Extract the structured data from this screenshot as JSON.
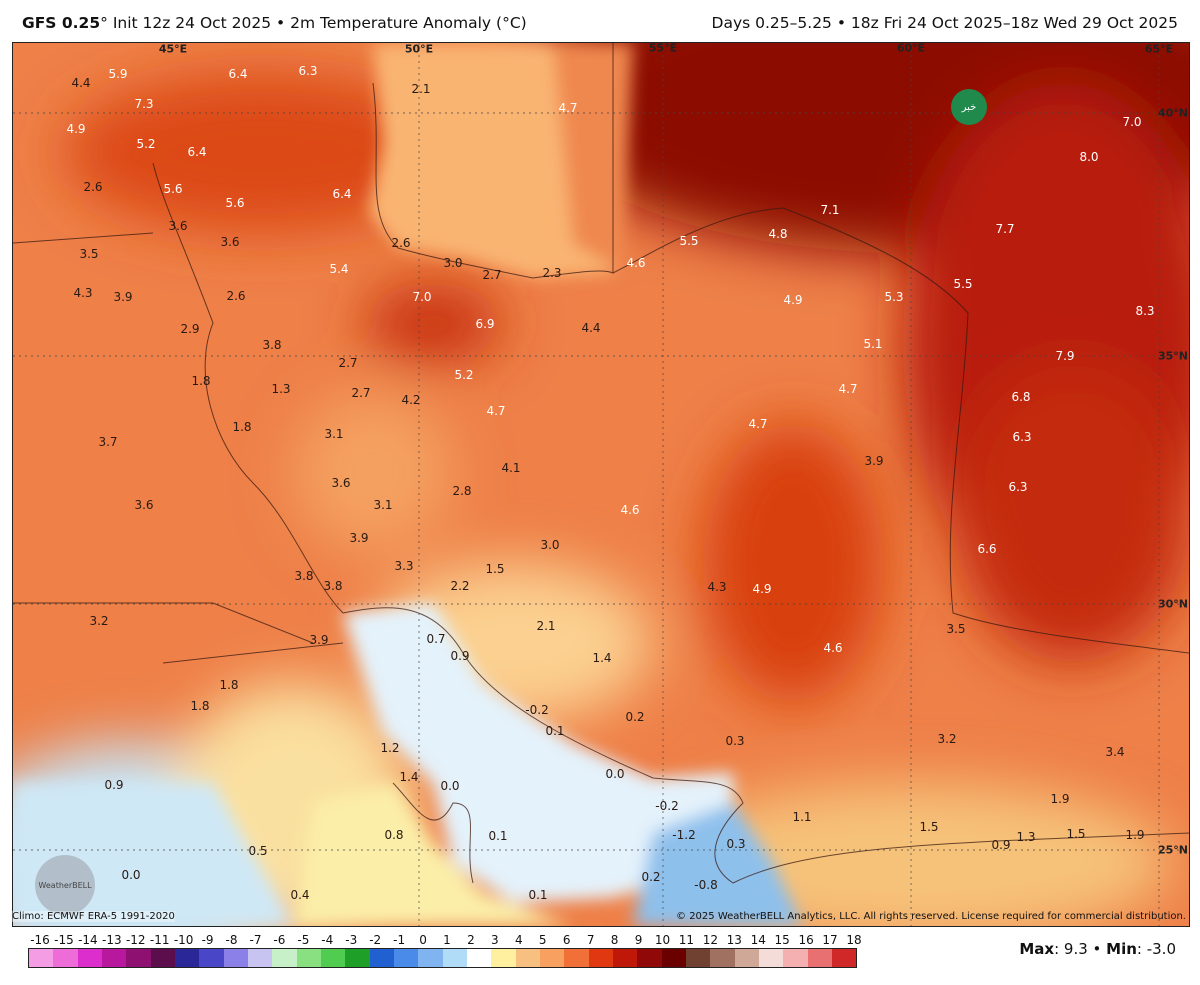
{
  "header": {
    "model": "GFS 0.25",
    "degree": "°",
    "init_info": "Init 12z 24 Oct 2025 • 2m Temperature Anomaly (°C)",
    "period": "Days 0.25–5.25 • 18z Fri 24 Oct 2025–18z Wed 29 Oct 2025"
  },
  "map": {
    "longitude_labels": [
      "45°E",
      "50°E",
      "55°E",
      "60°E",
      "65°E"
    ],
    "latitude_labels": [
      "40°N",
      "35°N",
      "30°N",
      "25°N"
    ],
    "anomaly_labels": [
      "4.4",
      "5.9",
      "6.4",
      "6.3",
      "7.3",
      "4.9",
      "5.2",
      "6.4",
      "2.6",
      "5.6",
      "5.6",
      "6.4",
      "3.6",
      "3.6",
      "2.6",
      "3.5",
      "5.4",
      "3.0",
      "2.7",
      "2.3",
      "4.6",
      "5.5",
      "4.8",
      "7.1",
      "7.7",
      "4.3",
      "3.9",
      "2.6",
      "7.0",
      "6.9",
      "4.4",
      "4.9",
      "5.3",
      "5.5",
      "8.3",
      "2.9",
      "3.8",
      "2.7",
      "5.1",
      "7.9",
      "1.8",
      "1.3",
      "2.7",
      "4.2",
      "5.2",
      "4.7",
      "4.7",
      "4.7",
      "6.8",
      "1.8",
      "3.1",
      "3.7",
      "6.3",
      "4.1",
      "3.9",
      "2.8",
      "3.6",
      "3.1",
      "6.3",
      "3.6",
      "4.6",
      "3.9",
      "3.0",
      "6.6",
      "3.3",
      "1.5",
      "3.8",
      "3.8",
      "2.2",
      "4.3",
      "4.9",
      "3.2",
      "2.1",
      "3.5",
      "0.7",
      "3.9",
      "0.9",
      "1.4",
      "4.6",
      "1.8",
      "1.8",
      "-0.2",
      "0.2",
      "0.1",
      "3.2",
      "0.3",
      "1.2",
      "3.4",
      "0.0",
      "1.4",
      "0.9",
      "0.0",
      "-0.2",
      "1.9",
      "1.1",
      "1.5",
      "1.3",
      "1.5",
      "1.9",
      "-1.2",
      "0.1",
      "0.8",
      "0.3",
      "0.9",
      "0.5",
      "0.0",
      "0.2",
      "-0.8",
      "0.1",
      "0.4",
      "7.0",
      "8.0",
      "4.7",
      "2.1"
    ],
    "watermark_logo": "خبرفوری",
    "weatherbell_logo": "WeatherBELL"
  },
  "footer": {
    "climo": "Climo: ECMWF ERA-5 1991-2020",
    "copyright": "© 2025 WeatherBELL Analytics, LLC. All rights reserved. License required for commercial distribution.",
    "max_label": "Max",
    "max_value": ": 9.3 • ",
    "min_label": "Min",
    "min_value": ": -3.0"
  },
  "colorbar": {
    "ticks": [
      "-16",
      "-15",
      "-14",
      "-13",
      "-12",
      "-11",
      "-10",
      "-9",
      "-8",
      "-7",
      "-6",
      "-5",
      "-4",
      "-3",
      "-2",
      "-1",
      "0",
      "1",
      "2",
      "3",
      "4",
      "5",
      "6",
      "7",
      "8",
      "9",
      "10",
      "11",
      "12",
      "13",
      "14",
      "15",
      "16",
      "17",
      "18"
    ],
    "colors": [
      "#f49ce4",
      "#ee6cd8",
      "#dc2ecc",
      "#b8189e",
      "#8e1070",
      "#5c0e4c",
      "#2a2898",
      "#4a46c8",
      "#8a80e8",
      "#c8c4f2",
      "#c8f0c8",
      "#88e080",
      "#50cc50",
      "#1ea028",
      "#2060d0",
      "#4a8ae8",
      "#80b4f0",
      "#b0dcf8",
      "#ffffff",
      "#fff0a0",
      "#f8c080",
      "#f8a060",
      "#f07038",
      "#e03810",
      "#c01808",
      "#900808",
      "#6a0000",
      "#704030",
      "#a07060",
      "#d0a898",
      "#f4dcd8",
      "#f4b0b0",
      "#e87070",
      "#d02828"
    ]
  }
}
